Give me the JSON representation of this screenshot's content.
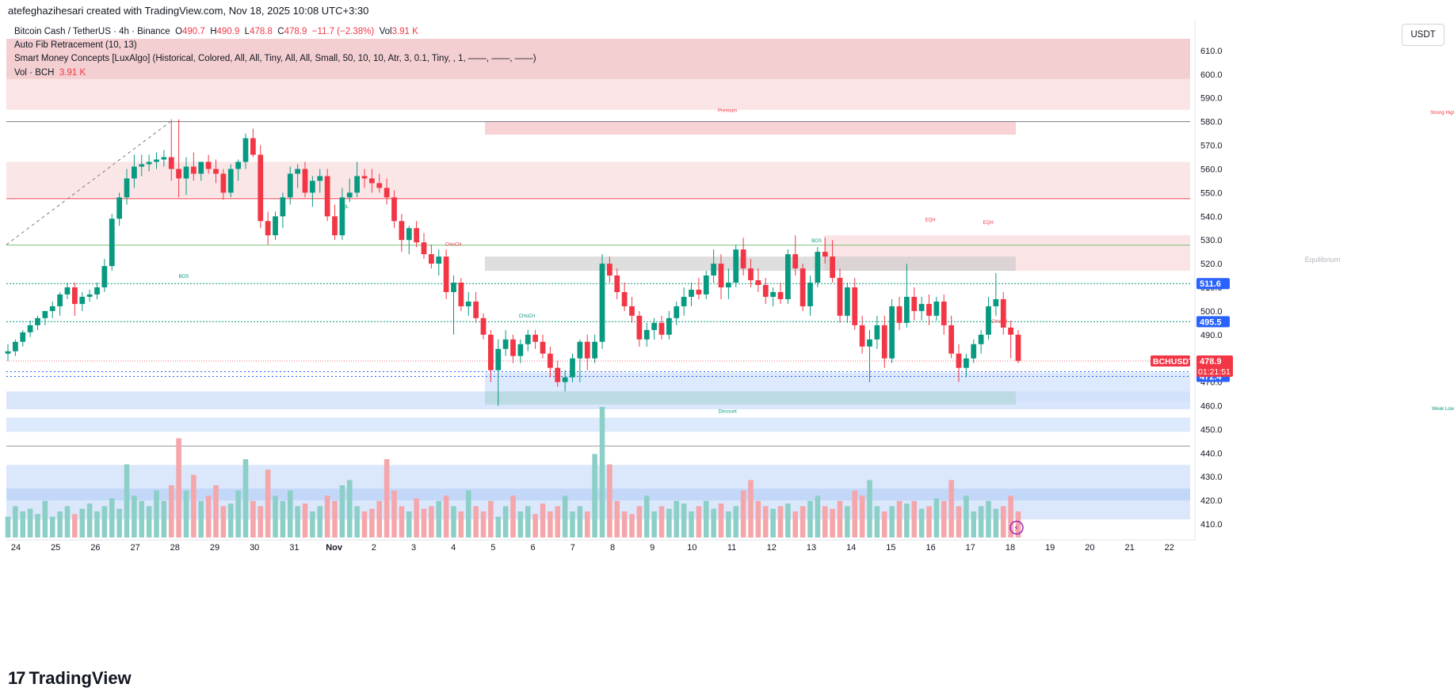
{
  "header": {
    "caption": "atefeghazihesari created with TradingView.com, Nov 18, 2025 10:08 UTC+3:30"
  },
  "legend": {
    "symbol": "Bitcoin Cash / TetherUS · 4h · Binance",
    "o_label": "O",
    "o": "490.7",
    "h_label": "H",
    "h": "490.9",
    "l_label": "L",
    "l": "478.8",
    "c_label": "C",
    "c": "478.9",
    "change": "−11.7 (−2.38%)",
    "vol_label": "Vol",
    "vol": "3.91 K",
    "indicator1": "Auto Fib Retracement (10, 13)",
    "indicator2": "Smart Money Concepts [LuxAlgo] (Historical, Colored, All, All, Tiny, All, All, Small, 50, 10, 10, Atr, 3, 0.1, Tiny, , 1, ——, ——, ——)",
    "indicator3_label": "Vol · BCH",
    "indicator3_value": "3.91 K"
  },
  "currency_button": "USDT",
  "footer": {
    "brand": "TradingView",
    "logo": "17"
  },
  "colors": {
    "up": "#089981",
    "down": "#f23645",
    "up_vol": "#8ccfc7",
    "down_vol": "#f5a6ab",
    "premium_zone": "#f8cdd0",
    "discount_zone": "#cfe0fb",
    "equilibrium": "#c8c8c8"
  },
  "chart_data": {
    "type": "candlestick",
    "ylim": [
      404,
      618
    ],
    "y_ticks": [
      410,
      420,
      430,
      440,
      450,
      460,
      470,
      480,
      490,
      500,
      510,
      520,
      530,
      540,
      550,
      560,
      570,
      580,
      590,
      600,
      610
    ],
    "y_tick_labels": [
      "410.0",
      "420.0",
      "430.0",
      "440.0",
      "450.0",
      "460.0",
      "470.0",
      "480.0",
      "490.0",
      "500.0",
      "510.0",
      "520.0",
      "530.0",
      "540.0",
      "550.0",
      "560.0",
      "570.0",
      "580.0",
      "590.0",
      "600.0",
      "610.0"
    ],
    "x_tick_labels": [
      "24",
      "25",
      "26",
      "27",
      "28",
      "29",
      "30",
      "31",
      "Nov",
      "2",
      "3",
      "4",
      "5",
      "6",
      "7",
      "8",
      "9",
      "10",
      "11",
      "12",
      "13",
      "14",
      "15",
      "16",
      "17",
      "18",
      "19",
      "20",
      "21",
      "22"
    ],
    "price_labels": [
      {
        "text": "511.6",
        "value": 511.6,
        "color": "#2962ff"
      },
      {
        "text": "495.5",
        "value": 495.5,
        "color": "#2962ff"
      },
      {
        "text": "474.4",
        "value": 474.4,
        "color": "#2962ff"
      },
      {
        "text": "472.4",
        "value": 472.4,
        "color": "#2962ff"
      }
    ],
    "last_price": {
      "symbol": "BCHUSDT",
      "value": 478.9,
      "text": "478.9",
      "countdown": "01:21:51"
    },
    "annotations": [
      {
        "text": "Premium",
        "price": 584,
        "day": 5.3,
        "color": "#f23645"
      },
      {
        "text": "Strong High",
        "price": 583.2,
        "day": 21.35,
        "color": "#f23645"
      },
      {
        "text": "Equilibrium",
        "price": 520.7,
        "day": 18.65,
        "color": "#b2b5be"
      },
      {
        "text": "Discount",
        "price": 457,
        "day": 5.3,
        "color": "#089981"
      },
      {
        "text": "Weak Low",
        "price": 458.2,
        "day": 21.35,
        "color": "#089981"
      },
      {
        "text": "EQL",
        "price": 543.5,
        "day": -3.3,
        "color": "#089981"
      },
      {
        "text": "BOS",
        "price": 514,
        "day": -6.9,
        "color": "#089981"
      },
      {
        "text": "BOS",
        "price": 529,
        "day": 7.3,
        "color": "#089981"
      },
      {
        "text": "CHoCH",
        "price": 497.3,
        "day": 0.8,
        "color": "#089981"
      },
      {
        "text": "CHoCH",
        "price": 527.5,
        "day": -0.85,
        "color": "#f23645"
      },
      {
        "text": "CHoCH",
        "price": 495,
        "day": 11.4,
        "color": "#f23645"
      },
      {
        "text": "EQH",
        "price": 538,
        "day": 9.85,
        "color": "#f23645"
      },
      {
        "text": "EQH",
        "price": 536.8,
        "day": 11.15,
        "color": "#f23645"
      }
    ],
    "candles_note": "Representative 4h OHLC path from Oct 23 to Nov 18 (day offsets relative to Nov 5 00:00 UTC are computed in script)",
    "candles": [
      [
        482,
        486,
        479,
        483
      ],
      [
        483,
        488,
        481,
        487
      ],
      [
        487,
        492,
        485,
        491
      ],
      [
        491,
        496,
        489,
        494
      ],
      [
        494,
        498,
        492,
        497
      ],
      [
        497,
        500,
        494,
        500
      ],
      [
        500,
        504,
        497,
        502
      ],
      [
        502,
        508,
        498,
        507
      ],
      [
        507,
        512,
        505,
        510
      ],
      [
        510,
        512,
        498,
        503
      ],
      [
        503,
        508,
        500,
        506
      ],
      [
        506,
        509,
        504,
        507
      ],
      [
        507,
        512,
        505,
        510
      ],
      [
        510,
        522,
        508,
        519
      ],
      [
        519,
        541,
        517,
        539
      ],
      [
        539,
        550,
        536,
        548
      ],
      [
        548,
        560,
        545,
        556
      ],
      [
        556,
        566,
        552,
        561
      ],
      [
        561,
        566,
        557,
        562
      ],
      [
        562,
        566,
        559,
        563
      ],
      [
        563,
        567,
        560,
        564
      ],
      [
        564,
        568,
        561,
        565
      ],
      [
        565,
        581,
        555,
        560
      ],
      [
        560,
        581,
        548,
        556
      ],
      [
        556,
        565,
        549,
        561
      ],
      [
        561,
        567,
        555,
        558
      ],
      [
        558,
        562,
        555,
        563
      ],
      [
        563,
        566,
        558,
        560
      ],
      [
        560,
        564,
        554,
        558
      ],
      [
        558,
        560,
        547,
        550
      ],
      [
        550,
        562,
        548,
        560
      ],
      [
        560,
        564,
        555,
        563
      ],
      [
        563,
        575,
        560,
        573
      ],
      [
        573,
        577,
        565,
        566
      ],
      [
        566,
        570,
        535,
        538
      ],
      [
        538,
        542,
        528,
        532
      ],
      [
        532,
        542,
        530,
        540
      ],
      [
        540,
        550,
        535,
        548
      ],
      [
        548,
        561,
        545,
        558
      ],
      [
        558,
        562,
        552,
        560
      ],
      [
        560,
        563,
        548,
        550
      ],
      [
        550,
        557,
        544,
        555
      ],
      [
        555,
        560,
        550,
        557
      ],
      [
        557,
        560,
        538,
        540
      ],
      [
        540,
        545,
        530,
        532
      ],
      [
        532,
        552,
        530,
        548
      ],
      [
        548,
        556,
        546,
        550
      ],
      [
        550,
        563,
        548,
        557
      ],
      [
        557,
        560,
        552,
        556
      ],
      [
        556,
        560,
        550,
        554
      ],
      [
        554,
        558,
        550,
        552
      ],
      [
        552,
        556,
        545,
        548
      ],
      [
        548,
        551,
        535,
        538
      ],
      [
        538,
        541,
        525,
        530
      ],
      [
        530,
        536,
        524,
        535
      ],
      [
        535,
        538,
        527,
        529
      ],
      [
        529,
        533,
        522,
        524
      ],
      [
        524,
        528,
        518,
        520
      ],
      [
        520,
        526,
        515,
        523
      ],
      [
        523,
        526,
        505,
        508
      ],
      [
        508,
        515,
        490,
        512
      ],
      [
        512,
        514,
        500,
        502
      ],
      [
        502,
        508,
        498,
        504
      ],
      [
        504,
        508,
        495,
        497
      ],
      [
        497,
        499,
        488,
        490
      ],
      [
        490,
        492,
        470,
        475
      ],
      [
        475,
        488,
        460,
        484
      ],
      [
        484,
        492,
        481,
        488
      ],
      [
        488,
        490,
        478,
        481
      ],
      [
        481,
        488,
        478,
        486
      ],
      [
        486,
        492,
        483,
        490
      ],
      [
        490,
        492,
        484,
        487
      ],
      [
        487,
        490,
        480,
        482
      ],
      [
        482,
        485,
        472,
        476
      ],
      [
        476,
        479,
        468,
        470
      ],
      [
        470,
        475,
        466,
        472
      ],
      [
        472,
        482,
        470,
        480
      ],
      [
        480,
        488,
        470,
        487
      ],
      [
        487,
        490,
        475,
        480
      ],
      [
        480,
        490,
        478,
        487
      ],
      [
        487,
        524,
        484,
        520
      ],
      [
        520,
        523,
        512,
        515
      ],
      [
        515,
        518,
        505,
        508
      ],
      [
        508,
        512,
        500,
        502
      ],
      [
        502,
        506,
        495,
        498
      ],
      [
        498,
        500,
        485,
        488
      ],
      [
        488,
        495,
        485,
        492
      ],
      [
        492,
        497,
        488,
        495
      ],
      [
        495,
        498,
        488,
        490
      ],
      [
        490,
        500,
        488,
        497
      ],
      [
        497,
        504,
        494,
        502
      ],
      [
        502,
        510,
        498,
        506
      ],
      [
        506,
        512,
        502,
        509
      ],
      [
        509,
        514,
        505,
        507
      ],
      [
        507,
        517,
        505,
        515
      ],
      [
        515,
        526,
        512,
        520
      ],
      [
        520,
        524,
        505,
        510
      ],
      [
        510,
        518,
        505,
        512
      ],
      [
        512,
        528,
        510,
        526
      ],
      [
        526,
        531,
        515,
        518
      ],
      [
        518,
        522,
        510,
        513
      ],
      [
        513,
        518,
        508,
        511
      ],
      [
        511,
        514,
        503,
        506
      ],
      [
        506,
        510,
        502,
        508
      ],
      [
        508,
        512,
        503,
        505
      ],
      [
        505,
        526,
        503,
        524
      ],
      [
        524,
        532,
        515,
        518
      ],
      [
        518,
        520,
        500,
        502
      ],
      [
        502,
        515,
        498,
        512
      ],
      [
        512,
        527,
        510,
        525
      ],
      [
        525,
        531,
        520,
        523
      ],
      [
        523,
        530,
        512,
        514
      ],
      [
        514,
        518,
        495,
        498
      ],
      [
        498,
        512,
        495,
        510
      ],
      [
        510,
        514,
        492,
        494
      ],
      [
        494,
        498,
        482,
        485
      ],
      [
        485,
        492,
        470,
        488
      ],
      [
        488,
        498,
        484,
        494
      ],
      [
        494,
        498,
        476,
        480
      ],
      [
        480,
        505,
        478,
        502
      ],
      [
        502,
        506,
        492,
        495
      ],
      [
        495,
        520,
        493,
        506
      ],
      [
        506,
        510,
        496,
        500
      ],
      [
        500,
        506,
        496,
        503
      ],
      [
        503,
        507,
        494,
        498
      ],
      [
        498,
        506,
        496,
        504
      ],
      [
        504,
        507,
        490,
        494
      ],
      [
        494,
        498,
        480,
        482
      ],
      [
        482,
        486,
        470,
        476
      ],
      [
        476,
        482,
        472,
        480
      ],
      [
        480,
        488,
        478,
        486
      ],
      [
        486,
        492,
        482,
        490
      ],
      [
        490,
        506,
        488,
        502
      ],
      [
        502,
        516,
        498,
        505
      ],
      [
        505,
        508,
        490,
        493
      ],
      [
        493,
        496,
        480,
        490
      ],
      [
        490,
        492,
        478,
        479
      ]
    ],
    "volumes": [
      8,
      12,
      10,
      11,
      9,
      14,
      8,
      10,
      12,
      9,
      11,
      13,
      10,
      12,
      15,
      11,
      28,
      16,
      14,
      12,
      18,
      14,
      20,
      38,
      18,
      24,
      14,
      16,
      20,
      12,
      13,
      18,
      30,
      14,
      12,
      26,
      16,
      14,
      18,
      12,
      13,
      10,
      12,
      16,
      14,
      20,
      22,
      12,
      10,
      11,
      14,
      30,
      18,
      12,
      10,
      15,
      11,
      12,
      14,
      16,
      12,
      10,
      18,
      12,
      10,
      14,
      8,
      12,
      16,
      10,
      12,
      9,
      13,
      10,
      12,
      16,
      10,
      12,
      10,
      32,
      50,
      28,
      14,
      10,
      9,
      12,
      16,
      10,
      12,
      11,
      14,
      13,
      10,
      12,
      14,
      11,
      13,
      10,
      12,
      18,
      22,
      14,
      12,
      11,
      12,
      13,
      10,
      12,
      14,
      16,
      12,
      11,
      14,
      12,
      18,
      16,
      22,
      12,
      10,
      12,
      14,
      13,
      14,
      11,
      12,
      15,
      14,
      22,
      12,
      16,
      10,
      12,
      14,
      11,
      12,
      16,
      10
    ],
    "volume_down_flags_note": "color derived from candle direction"
  }
}
